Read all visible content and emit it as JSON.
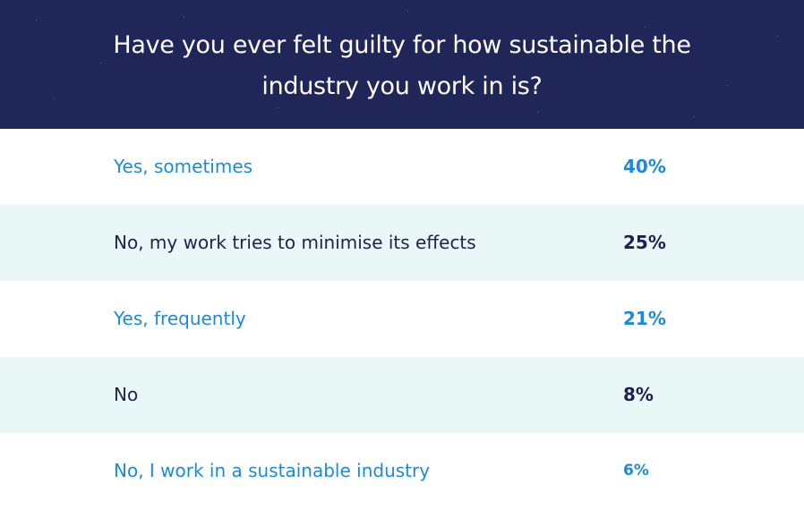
{
  "chart_data": {
    "type": "table",
    "title": "Have you ever felt guilty for how sustainable the industry you work in is?",
    "rows": [
      {
        "label": "Yes, sometimes",
        "value": "40%"
      },
      {
        "label": "No, my work tries to minimise its effects",
        "value": "25%"
      },
      {
        "label": "Yes, frequently",
        "value": "21%"
      },
      {
        "label": "No",
        "value": "8%"
      },
      {
        "label": "No, I work in a sustainable industry",
        "value": "6%"
      }
    ]
  },
  "colors": {
    "header_background": "#212658",
    "accent_blue": "#1b8bd9",
    "dark_text": "#1c2150",
    "alt_row_background": "#e9f7f7"
  }
}
